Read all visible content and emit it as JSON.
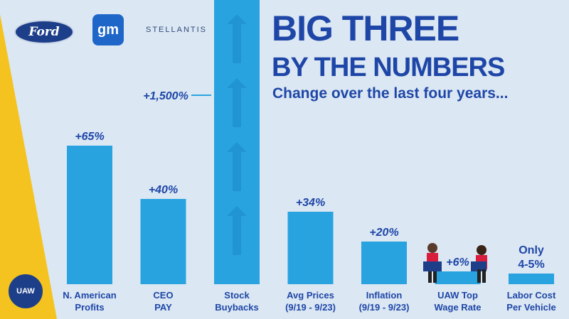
{
  "logos": {
    "ford": "Ford",
    "gm": "gm",
    "stellantis": "STELLANTIS",
    "uaw": "UAW"
  },
  "headline": {
    "line1": "BIG THREE",
    "line2": "BY THE NUMBERS",
    "subtitle": "Change over the last four years..."
  },
  "colors": {
    "background": "#dbe7f3",
    "bar": "#29a3e0",
    "text": "#1e46a7",
    "accent_yellow": "#f4c320"
  },
  "chart_data": {
    "type": "bar",
    "categories": [
      [
        "N. American",
        "Profits"
      ],
      [
        "CEO",
        "PAY"
      ],
      [
        "Stock",
        "Buybacks"
      ],
      [
        "Avg Prices",
        "(9/19 - 9/23)"
      ],
      [
        "Inflation",
        "(9/19 - 9/23)"
      ],
      [
        "UAW Top",
        "Wage Rate"
      ],
      [
        "Labor Cost",
        "Per Vehicle"
      ]
    ],
    "values": [
      65,
      40,
      1500,
      34,
      20,
      6,
      5
    ],
    "data_labels": [
      [
        "+65%"
      ],
      [
        "+40%"
      ],
      [
        "+1,500%"
      ],
      [
        "+34%"
      ],
      [
        "+20%"
      ],
      [
        "+6%"
      ],
      [
        "Only",
        "4-5%"
      ]
    ],
    "ylim": [
      0,
      1500
    ],
    "grid": false,
    "legend": "none"
  }
}
